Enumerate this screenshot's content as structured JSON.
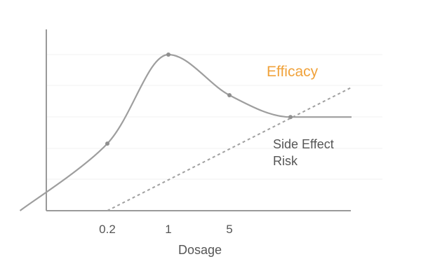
{
  "chart_data": {
    "type": "line",
    "xlabel": "Dosage",
    "x_ticks": [
      "0.2",
      "1",
      "5"
    ],
    "y_range": [
      0,
      1
    ],
    "grid": true,
    "legend": "none",
    "series": [
      {
        "name": "Efficacy",
        "color": "#f0a23b",
        "style": "solid",
        "x": [
          0.02,
          0.2,
          1,
          5,
          25,
          125
        ],
        "y": [
          0,
          0.43,
          1.0,
          0.74,
          0.6,
          0.6
        ],
        "markers_at": [
          0.2,
          1,
          5,
          25
        ]
      },
      {
        "name": "Side Effect Risk",
        "style": "dotted",
        "x": [
          0.2,
          125
        ],
        "y": [
          0,
          0.79
        ]
      }
    ],
    "labels": {
      "efficacy": "Efficacy",
      "risk_line1": "Side Effect",
      "risk_line2": "Risk"
    }
  }
}
